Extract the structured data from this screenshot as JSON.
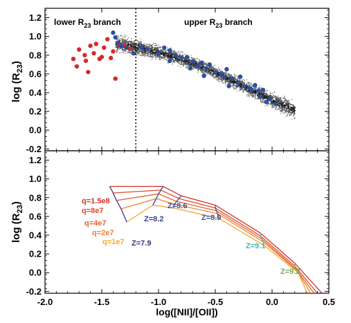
{
  "chart_data": [
    {
      "type": "scatter",
      "ylabel": "log (R",
      "ylabel_sub": "23",
      "ylabel_close": ")",
      "xlim": [
        -2.0,
        0.5
      ],
      "ylim": [
        -0.22,
        1.3
      ],
      "yticks": [
        -0.2,
        0.0,
        0.2,
        0.4,
        0.6,
        0.8,
        1.0,
        1.2
      ],
      "ytick_labels": [
        "-0.2",
        "0.0",
        "0.2",
        "0.4",
        "0.6",
        "0.8",
        "1.0",
        "1.2"
      ],
      "divider_x": -1.2,
      "annotations": [
        {
          "pre": "lower R",
          "sub": "23",
          "post": " branch"
        },
        {
          "pre": "upper R",
          "sub": "23",
          "post": " branch"
        }
      ],
      "background_band": {
        "description_color": "#777777",
        "centerline": [
          [
            -1.38,
            0.93
          ],
          [
            -1.2,
            0.89
          ],
          [
            -1.0,
            0.83
          ],
          [
            -0.8,
            0.76
          ],
          [
            -0.6,
            0.67
          ],
          [
            -0.4,
            0.56
          ],
          [
            -0.2,
            0.44
          ],
          [
            0.0,
            0.32
          ],
          [
            0.1,
            0.27
          ],
          [
            0.2,
            0.22
          ]
        ]
      },
      "series": [
        {
          "color": "#d42a2a",
          "points": [
            [
              -1.75,
              0.76
            ],
            [
              -1.7,
              0.86
            ],
            [
              -1.65,
              0.8
            ],
            [
              -1.64,
              0.74
            ],
            [
              -1.6,
              0.9
            ],
            [
              -1.57,
              0.82
            ],
            [
              -1.55,
              0.92
            ],
            [
              -1.52,
              0.76
            ],
            [
              -1.5,
              0.78
            ],
            [
              -1.48,
              0.88
            ],
            [
              -1.45,
              0.97
            ],
            [
              -1.42,
              0.77
            ],
            [
              -1.4,
              0.84
            ],
            [
              -1.38,
              0.55
            ],
            [
              -1.35,
              0.9
            ],
            [
              -1.3,
              0.91
            ],
            [
              -1.28,
              0.88
            ],
            [
              -1.25,
              0.87
            ],
            [
              -1.62,
              0.62
            ],
            [
              -1.72,
              0.68
            ]
          ]
        },
        {
          "color": "#2e4f9e",
          "points": [
            [
              -1.4,
              1.04
            ],
            [
              -1.38,
              0.99
            ],
            [
              -1.36,
              0.93
            ],
            [
              -1.33,
              0.9
            ],
            [
              -1.28,
              0.88
            ],
            [
              -1.15,
              0.88
            ],
            [
              -1.1,
              0.86
            ],
            [
              -1.0,
              0.82
            ],
            [
              -0.95,
              0.88
            ],
            [
              -0.9,
              0.85
            ],
            [
              -0.85,
              0.8
            ],
            [
              -0.8,
              0.77
            ],
            [
              -0.75,
              0.78
            ],
            [
              -0.7,
              0.73
            ],
            [
              -0.65,
              0.68
            ],
            [
              -0.62,
              0.72
            ],
            [
              -0.58,
              0.66
            ],
            [
              -0.55,
              0.7
            ],
            [
              -0.5,
              0.62
            ],
            [
              -0.45,
              0.6
            ],
            [
              -0.42,
              0.57
            ],
            [
              -0.4,
              0.65
            ],
            [
              -0.35,
              0.55
            ],
            [
              -0.3,
              0.5
            ],
            [
              -0.28,
              0.57
            ],
            [
              -0.25,
              0.47
            ],
            [
              -0.2,
              0.45
            ],
            [
              -0.18,
              0.43
            ],
            [
              -0.15,
              0.48
            ],
            [
              -0.12,
              0.42
            ],
            [
              -0.1,
              0.36
            ],
            [
              -0.05,
              0.3
            ],
            [
              -0.02,
              0.33
            ],
            [
              0.03,
              0.28
            ],
            [
              -0.6,
              0.58
            ],
            [
              -0.38,
              0.47
            ],
            [
              -0.9,
              0.74
            ],
            [
              -0.72,
              0.66
            ],
            [
              -0.08,
              0.43
            ],
            [
              -1.22,
              0.82
            ]
          ]
        }
      ]
    },
    {
      "type": "line",
      "xlabel": "log([NII]/[OII])",
      "ylabel": "log (R",
      "ylabel_sub": "23",
      "ylabel_close": ")",
      "xlim": [
        -2.0,
        0.5
      ],
      "ylim": [
        -0.22,
        1.3
      ],
      "xticks": [
        -2.0,
        -1.5,
        -1.0,
        -0.5,
        0.0,
        0.5
      ],
      "xtick_labels": [
        "-2.0",
        "-1.5",
        "-1.0",
        "-0.5",
        "0.0",
        "0.5"
      ],
      "yticks": [
        -0.2,
        0.0,
        0.2,
        0.4,
        0.6,
        0.8,
        1.0,
        1.2
      ],
      "ytick_labels": [
        "-0.2",
        "0.0",
        "0.2",
        "0.4",
        "0.6",
        "0.8",
        "1.0",
        "1.2"
      ],
      "series": [
        {
          "name": "q=1.5e8",
          "color": "#d22f27",
          "points": [
            [
              -1.43,
              0.92
            ],
            [
              -0.96,
              0.92
            ],
            [
              -0.8,
              0.82
            ],
            [
              -0.5,
              0.72
            ],
            [
              -0.1,
              0.42
            ],
            [
              0.2,
              0.1
            ],
            [
              0.44,
              -0.22
            ]
          ]
        },
        {
          "name": "q=8e7",
          "color": "#db4a2a",
          "points": [
            [
              -1.4,
              0.85
            ],
            [
              -0.98,
              0.88
            ],
            [
              -0.82,
              0.79
            ],
            [
              -0.5,
              0.69
            ],
            [
              -0.1,
              0.39
            ],
            [
              0.2,
              0.07
            ],
            [
              0.4,
              -0.22
            ]
          ]
        },
        {
          "name": "q=4e7",
          "color": "#e5652e",
          "points": [
            [
              -1.37,
              0.77
            ],
            [
              -1.0,
              0.84
            ],
            [
              -0.84,
              0.76
            ],
            [
              -0.49,
              0.66
            ],
            [
              -0.09,
              0.36
            ],
            [
              0.21,
              0.04
            ],
            [
              0.37,
              -0.22
            ]
          ]
        },
        {
          "name": "q=2e7",
          "color": "#ef8132",
          "points": [
            [
              -1.33,
              0.68
            ],
            [
              -1.02,
              0.79
            ],
            [
              -0.86,
              0.73
            ],
            [
              -0.48,
              0.63
            ],
            [
              -0.08,
              0.33
            ],
            [
              0.22,
              0.02
            ],
            [
              0.34,
              -0.22
            ]
          ]
        },
        {
          "name": "q=1e7",
          "color": "#f5a637",
          "points": [
            [
              -1.28,
              0.54
            ],
            [
              -1.05,
              0.72
            ],
            [
              -0.87,
              0.69
            ],
            [
              -0.47,
              0.58
            ],
            [
              -0.07,
              0.29
            ],
            [
              0.23,
              0.0
            ],
            [
              0.31,
              -0.22
            ]
          ]
        }
      ],
      "iso_metallicity_lines": [
        {
          "name": "Z=7.9",
          "color": "#4a2a80",
          "points": [
            [
              -1.43,
              0.92
            ],
            [
              -1.4,
              0.85
            ],
            [
              -1.37,
              0.77
            ],
            [
              -1.33,
              0.68
            ],
            [
              -1.28,
              0.54
            ]
          ]
        },
        {
          "name": "Z=8.2",
          "color": "#3d3f8f",
          "points": [
            [
              -0.96,
              0.92
            ],
            [
              -0.98,
              0.88
            ],
            [
              -1.0,
              0.84
            ],
            [
              -1.02,
              0.79
            ],
            [
              -1.05,
              0.72
            ]
          ]
        },
        {
          "name": "Z=8.6",
          "color": "#3b4f9a",
          "points": [
            [
              -0.8,
              0.82
            ],
            [
              -0.82,
              0.79
            ],
            [
              -0.84,
              0.76
            ],
            [
              -0.86,
              0.73
            ],
            [
              -0.87,
              0.69
            ]
          ]
        },
        {
          "name": "Z=8.9",
          "color": "#3b4f9a",
          "points": [
            [
              -0.5,
              0.72
            ],
            [
              -0.5,
              0.69
            ],
            [
              -0.49,
              0.66
            ],
            [
              -0.48,
              0.63
            ],
            [
              -0.47,
              0.58
            ]
          ]
        },
        {
          "name": "Z=9.1",
          "color": "#4ab4b0",
          "points": [
            [
              -0.1,
              0.42
            ],
            [
              -0.1,
              0.39
            ],
            [
              -0.09,
              0.36
            ],
            [
              -0.08,
              0.33
            ],
            [
              -0.07,
              0.29
            ]
          ]
        },
        {
          "name": "Z=9.2",
          "color": "#6ab04c",
          "points": [
            [
              0.2,
              0.1
            ],
            [
              0.2,
              0.07
            ],
            [
              0.21,
              0.04
            ],
            [
              0.22,
              0.02
            ],
            [
              0.23,
              0.0
            ]
          ]
        }
      ]
    }
  ]
}
